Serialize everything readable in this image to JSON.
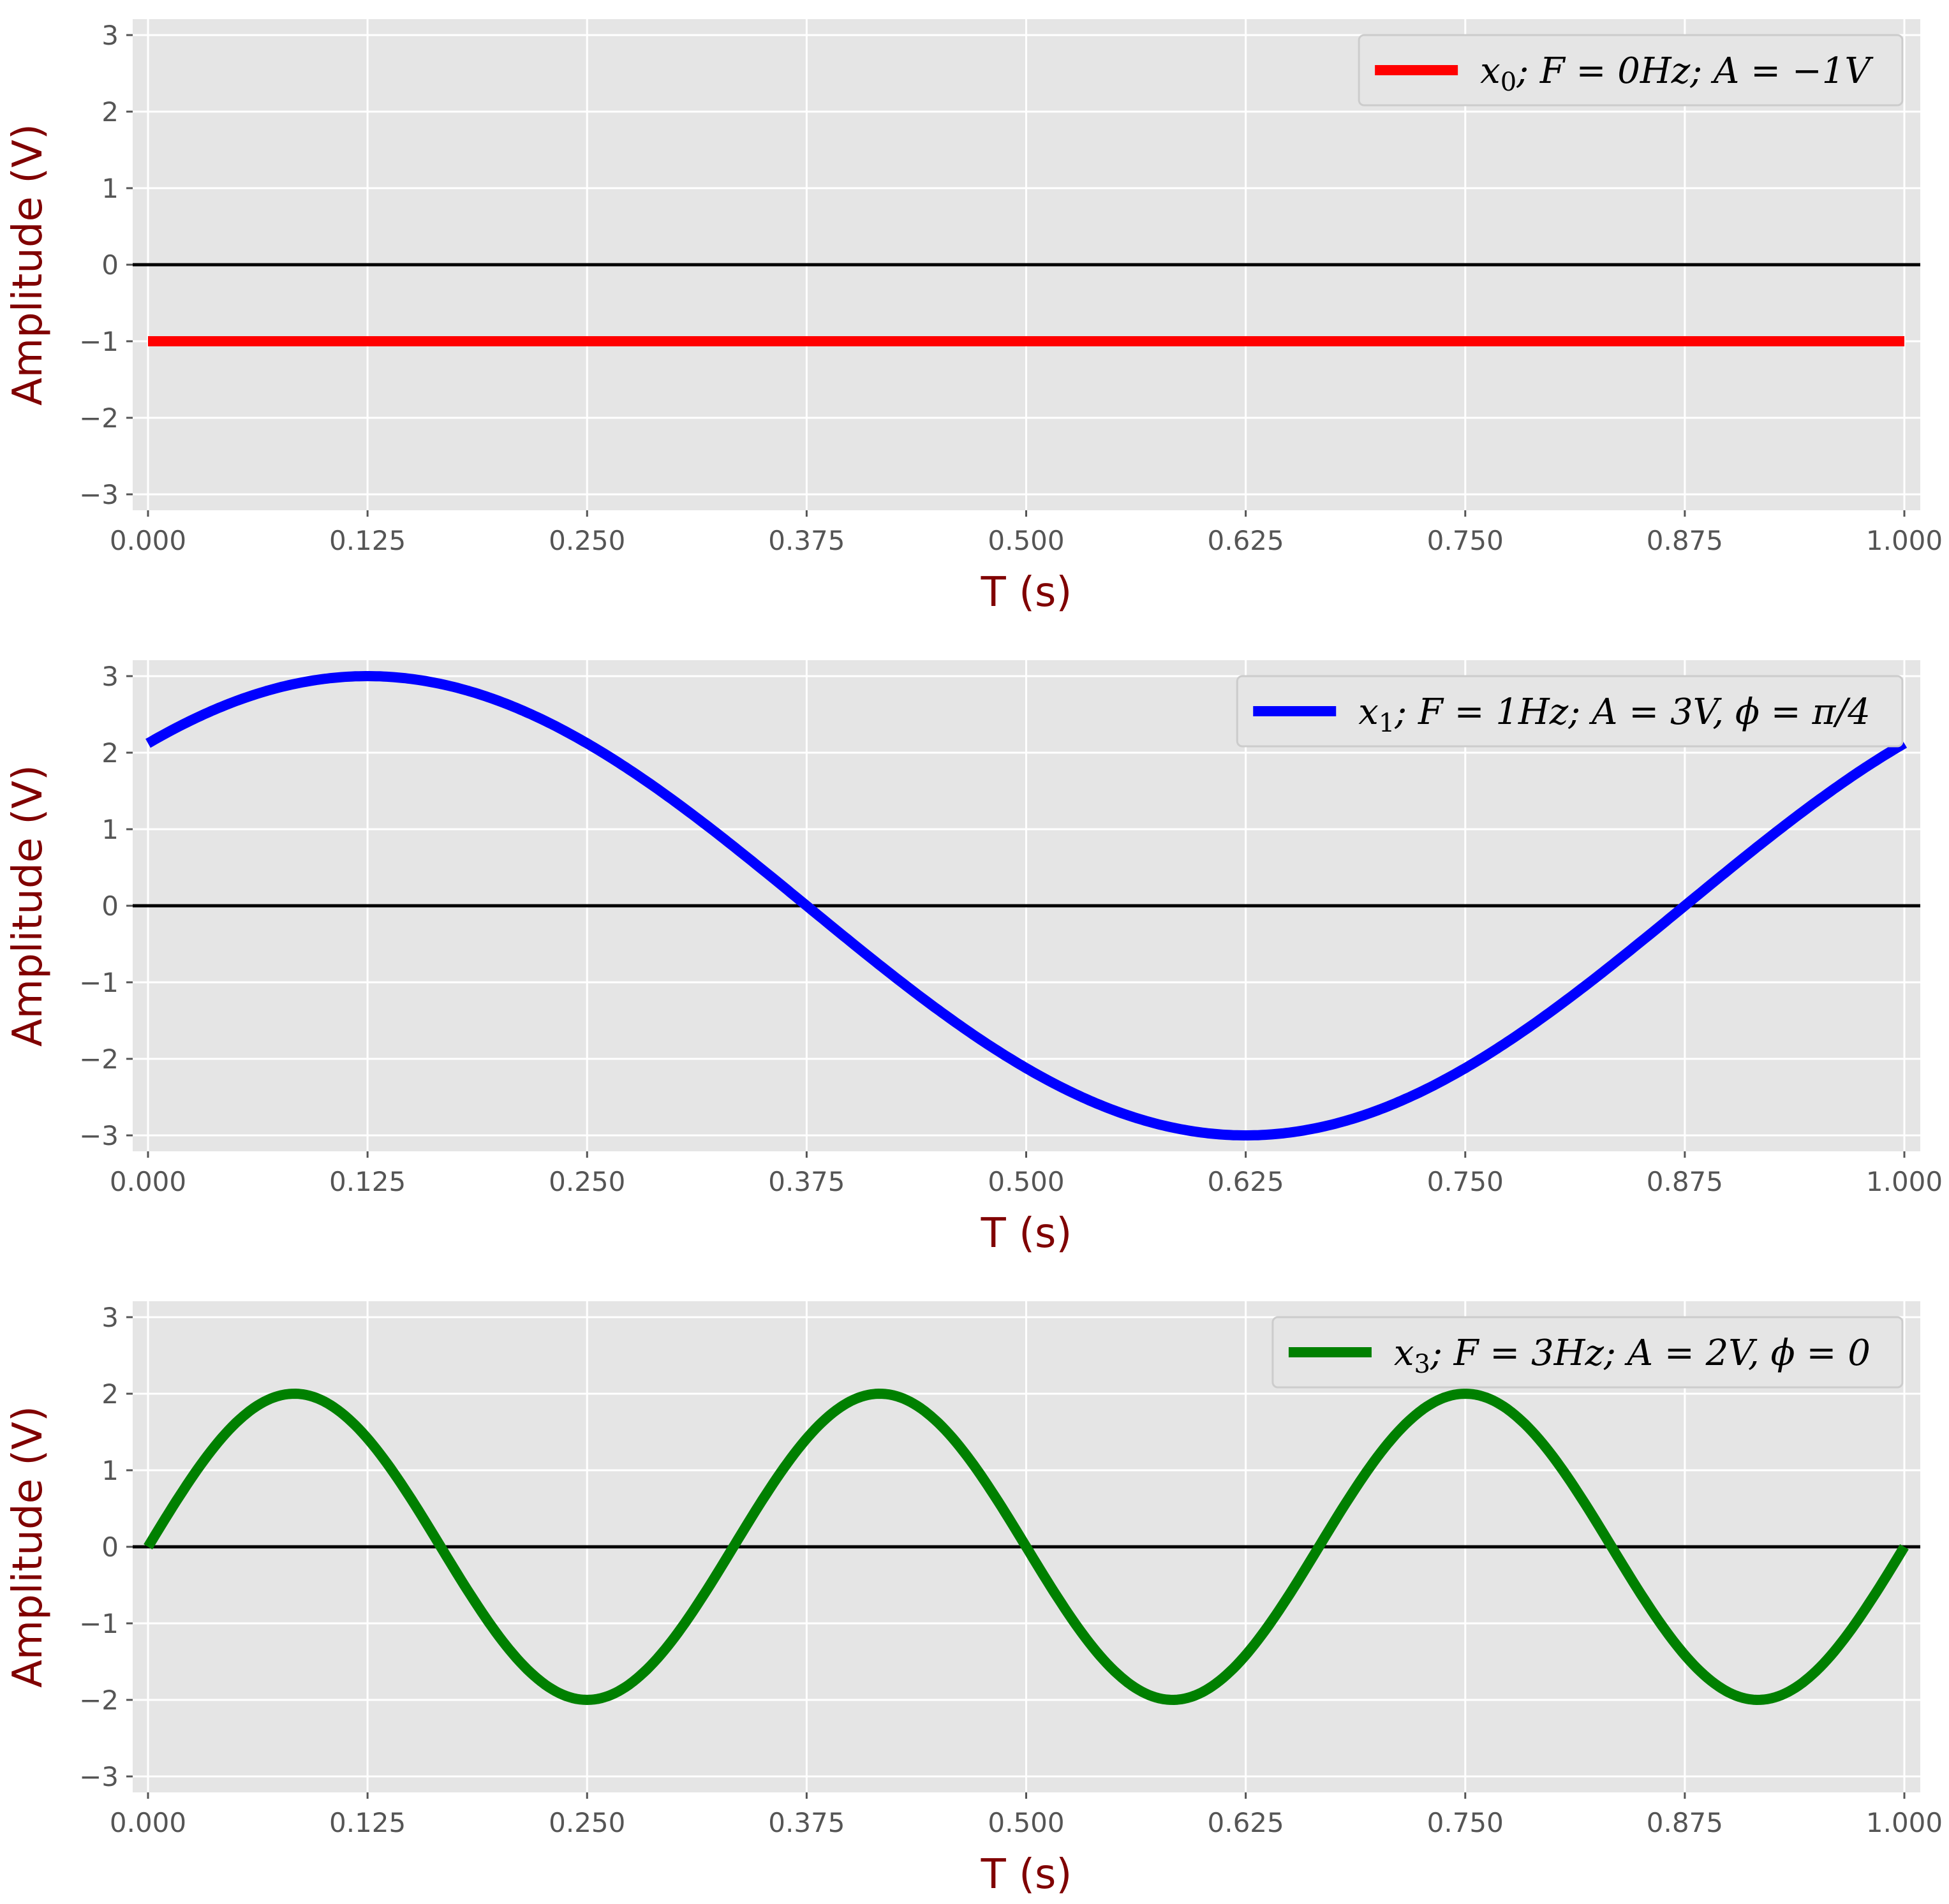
{
  "chart_data": [
    {
      "type": "line",
      "xlabel": "T (s)",
      "ylabel": "Amplitude (V)",
      "xlim": [
        0,
        1
      ],
      "ylim": [
        -3,
        3
      ],
      "xticks": [
        "0.000",
        "0.125",
        "0.250",
        "0.375",
        "0.500",
        "0.625",
        "0.750",
        "0.875",
        "1.000"
      ],
      "yticks": [
        "−3",
        "−2",
        "−1",
        "0",
        "1",
        "2",
        "3"
      ],
      "grid": true,
      "zero_line": true,
      "legend_position": "top-right",
      "series": [
        {
          "name": "x0; F = 0Hz; A = −1V",
          "legend_parts": {
            "var": "x",
            "sub": "0",
            "rest": "; F = 0Hz; A = −1V"
          },
          "color": "#ff0000",
          "frequency_hz": 0,
          "amplitude_v": -1,
          "phase_rad": 0,
          "function": "constant",
          "x": [
            0,
            0.125,
            0.25,
            0.375,
            0.5,
            0.625,
            0.75,
            0.875,
            1.0
          ],
          "y": [
            -1,
            -1,
            -1,
            -1,
            -1,
            -1,
            -1,
            -1,
            -1
          ]
        }
      ]
    },
    {
      "type": "line",
      "xlabel": "T (s)",
      "ylabel": "Amplitude (V)",
      "xlim": [
        0,
        1
      ],
      "ylim": [
        -3,
        3
      ],
      "xticks": [
        "0.000",
        "0.125",
        "0.250",
        "0.375",
        "0.500",
        "0.625",
        "0.750",
        "0.875",
        "1.000"
      ],
      "yticks": [
        "−3",
        "−2",
        "−1",
        "0",
        "1",
        "2",
        "3"
      ],
      "grid": true,
      "zero_line": true,
      "legend_position": "top-right",
      "series": [
        {
          "name": "x1; F = 1Hz; A = 3V, ϕ = π/4",
          "legend_parts": {
            "var": "x",
            "sub": "1",
            "rest": "; F = 1Hz; A = 3V, ϕ = π/4"
          },
          "color": "#0000ff",
          "frequency_hz": 1,
          "amplitude_v": 3,
          "phase_rad": 0.7853981634,
          "function": "sin",
          "x": [
            0,
            0.125,
            0.25,
            0.375,
            0.5,
            0.625,
            0.75,
            0.875,
            1.0
          ],
          "y": [
            2.12,
            3.0,
            2.12,
            0,
            -2.12,
            -3.0,
            -2.12,
            0,
            2.12
          ]
        }
      ]
    },
    {
      "type": "line",
      "xlabel": "T (s)",
      "ylabel": "Amplitude (V)",
      "xlim": [
        0,
        1
      ],
      "ylim": [
        -3,
        3
      ],
      "xticks": [
        "0.000",
        "0.125",
        "0.250",
        "0.375",
        "0.500",
        "0.625",
        "0.750",
        "0.875",
        "1.000"
      ],
      "yticks": [
        "−3",
        "−2",
        "−1",
        "0",
        "1",
        "2",
        "3"
      ],
      "grid": true,
      "zero_line": true,
      "legend_position": "top-right",
      "series": [
        {
          "name": "x3; F = 3Hz; A = 2V, ϕ = 0",
          "legend_parts": {
            "var": "x",
            "sub": "3",
            "rest": "; F = 3Hz; A = 2V, ϕ = 0"
          },
          "color": "#008000",
          "frequency_hz": 3,
          "amplitude_v": 2,
          "phase_rad": 0,
          "function": "sin",
          "x": [
            0,
            0.0833,
            0.1667,
            0.25,
            0.3333,
            0.4167,
            0.5,
            0.5833,
            0.6667,
            0.75,
            0.8333,
            0.9167,
            1.0
          ],
          "y": [
            0,
            2,
            0,
            -2,
            0,
            2,
            0,
            -2,
            0,
            2,
            0,
            -2,
            0
          ]
        }
      ]
    }
  ]
}
